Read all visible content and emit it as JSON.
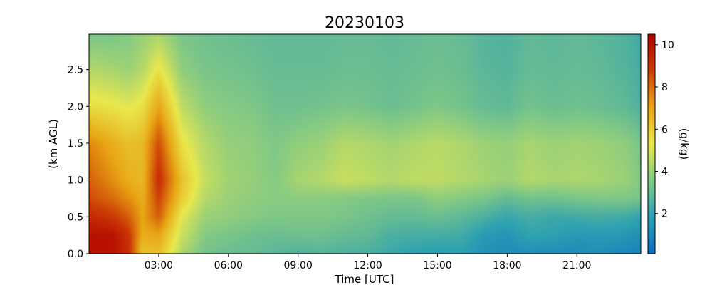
{
  "chart_data": {
    "type": "heatmap",
    "title": "20230103",
    "xlabel": "Time [UTC]",
    "ylabel": "(km AGL)",
    "colorbar_label": "(g/kg)",
    "x_unit": "hours UTC",
    "xlim": [
      0,
      23.75
    ],
    "ylim": [
      0,
      2.98
    ],
    "x_ticks": [
      3,
      6,
      9,
      12,
      15,
      18,
      21
    ],
    "x_tick_labels": [
      "03:00",
      "06:00",
      "09:00",
      "12:00",
      "15:00",
      "18:00",
      "21:00"
    ],
    "y_ticks": [
      0.0,
      0.5,
      1.0,
      1.5,
      2.0,
      2.5
    ],
    "y_tick_labels": [
      "0.0",
      "0.5",
      "1.0",
      "1.5",
      "2.0",
      "2.5"
    ],
    "colorbar_range": [
      0.1,
      10.5
    ],
    "colorbar_ticks": [
      2,
      4,
      6,
      8,
      10
    ],
    "colorbar_tick_labels": [
      "2",
      "4",
      "6",
      "8",
      "10"
    ],
    "colormap": [
      "#0f6cc0",
      "#2a9fb3",
      "#83c985",
      "#e8e84e",
      "#e8a515",
      "#cc3c06",
      "#b00000"
    ],
    "heights_km": [
      0.0,
      0.25,
      0.5,
      0.75,
      1.0,
      1.5,
      2.0,
      2.5,
      2.98
    ],
    "times_utc": [
      0,
      1,
      1.7,
      2.3,
      3,
      4,
      5,
      6,
      7,
      8,
      9,
      10,
      11,
      12,
      13,
      14,
      15,
      16,
      17,
      18,
      19,
      20,
      21,
      22,
      23,
      23.75
    ],
    "values": [
      [
        10.0,
        10.0,
        9.2,
        6.2,
        6.4,
        4.3,
        3.3,
        3.1,
        3.0,
        2.8,
        2.6,
        2.7,
        2.6,
        2.5,
        2.2,
        1.9,
        1.8,
        1.9,
        1.4,
        1.2,
        1.3,
        1.2,
        1.2,
        1.3,
        1.0,
        0.8
      ],
      [
        10.0,
        10.0,
        9.0,
        6.8,
        7.0,
        4.8,
        3.6,
        3.4,
        3.2,
        3.1,
        3.2,
        3.2,
        3.0,
        2.9,
        2.5,
        2.4,
        2.4,
        2.3,
        1.7,
        1.5,
        2.0,
        1.9,
        1.6,
        1.7,
        1.6,
        1.3
      ],
      [
        9.3,
        8.9,
        8.2,
        7.0,
        8.2,
        5.2,
        4.0,
        3.8,
        3.6,
        3.5,
        3.5,
        3.5,
        3.4,
        3.2,
        3.0,
        3.0,
        3.1,
        2.9,
        2.5,
        2.1,
        2.4,
        2.2,
        2.3,
        2.4,
        2.3,
        2.0
      ],
      [
        8.5,
        8.0,
        7.4,
        6.8,
        8.7,
        6.0,
        4.4,
        4.0,
        3.8,
        3.7,
        3.7,
        3.7,
        3.6,
        3.5,
        3.4,
        3.4,
        3.8,
        3.6,
        3.4,
        3.0,
        3.3,
        3.2,
        3.4,
        3.5,
        3.5,
        3.4
      ],
      [
        8.2,
        7.4,
        6.8,
        6.5,
        9.2,
        6.3,
        4.7,
        4.1,
        3.9,
        3.6,
        4.2,
        4.4,
        4.8,
        4.6,
        4.4,
        4.6,
        4.6,
        4.4,
        4.2,
        4.0,
        4.4,
        4.2,
        4.3,
        4.2,
        4.0,
        3.6
      ],
      [
        7.5,
        6.8,
        6.3,
        6.5,
        8.5,
        5.5,
        4.4,
        3.9,
        3.8,
        3.5,
        3.8,
        4.0,
        4.4,
        4.3,
        4.1,
        4.3,
        4.5,
        4.3,
        4.0,
        3.9,
        4.2,
        4.0,
        4.1,
        4.0,
        3.8,
        3.4
      ],
      [
        5.6,
        5.4,
        5.2,
        5.5,
        7.0,
        4.6,
        3.8,
        3.6,
        3.5,
        3.2,
        3.2,
        3.3,
        3.4,
        3.3,
        3.1,
        3.3,
        3.5,
        3.3,
        3.0,
        2.9,
        3.3,
        3.1,
        3.2,
        3.1,
        2.9,
        2.6
      ],
      [
        4.4,
        4.2,
        4.0,
        4.4,
        5.5,
        3.8,
        3.4,
        3.3,
        3.2,
        3.0,
        3.0,
        3.0,
        3.1,
        3.1,
        3.0,
        3.1,
        3.2,
        3.1,
        2.8,
        2.7,
        3.0,
        2.9,
        3.0,
        2.9,
        2.7,
        2.4
      ],
      [
        3.4,
        3.4,
        3.6,
        3.9,
        4.2,
        3.4,
        3.2,
        3.1,
        3.0,
        2.9,
        2.9,
        2.9,
        3.0,
        3.0,
        2.9,
        3.0,
        3.1,
        3.0,
        2.7,
        2.6,
        2.9,
        2.8,
        2.9,
        2.8,
        2.6,
        2.3
      ]
    ]
  }
}
